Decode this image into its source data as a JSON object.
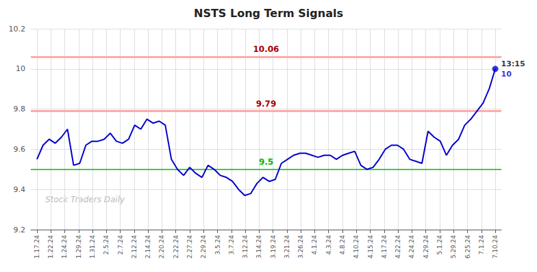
{
  "chart_data": {
    "type": "line",
    "title": "NSTS Long Term Signals",
    "watermark": "Stock Traders Daily",
    "color": "#0000cc",
    "x": [
      0,
      1,
      2,
      3,
      4,
      5,
      6,
      7,
      8,
      9,
      10,
      11,
      12,
      13,
      14,
      15,
      16,
      17,
      18,
      19,
      20,
      21,
      22,
      23,
      24,
      25,
      26,
      27,
      28,
      29,
      30,
      31,
      32,
      33,
      34,
      35,
      36,
      37,
      38,
      39,
      40,
      41,
      42,
      43,
      44,
      45,
      46,
      47,
      48,
      49,
      50,
      51,
      52,
      53,
      54,
      55,
      56,
      57,
      58,
      59,
      60,
      61,
      62,
      63,
      64,
      65,
      66,
      67,
      68,
      69,
      70,
      71,
      72,
      73,
      74,
      75
    ],
    "values": [
      9.55,
      9.62,
      9.65,
      9.63,
      9.66,
      9.7,
      9.52,
      9.53,
      9.62,
      9.64,
      9.64,
      9.65,
      9.68,
      9.64,
      9.63,
      9.65,
      9.72,
      9.7,
      9.75,
      9.73,
      9.74,
      9.72,
      9.55,
      9.5,
      9.47,
      9.51,
      9.48,
      9.46,
      9.52,
      9.5,
      9.47,
      9.46,
      9.44,
      9.4,
      9.37,
      9.38,
      9.43,
      9.46,
      9.44,
      9.45,
      9.53,
      9.55,
      9.57,
      9.58,
      9.58,
      9.57,
      9.56,
      9.57,
      9.57,
      9.55,
      9.57,
      9.58,
      9.59,
      9.52,
      9.5,
      9.51,
      9.55,
      9.6,
      9.62,
      9.62,
      9.6,
      9.55,
      9.54,
      9.53,
      9.69,
      9.66,
      9.64,
      9.57,
      9.62,
      9.65,
      9.72,
      9.75,
      9.79,
      9.83,
      9.9,
      10.0
    ],
    "xlim": [
      -1,
      76
    ],
    "xticks": [
      {
        "value": 0,
        "label": "1.17.24"
      },
      {
        "value": 2.2727272727,
        "label": "1.22.24"
      },
      {
        "value": 4.5454545455,
        "label": "1.24.24"
      },
      {
        "value": 6.8181818182,
        "label": "1.29.24"
      },
      {
        "value": 9.0909090909,
        "label": "1.31.24"
      },
      {
        "value": 11.3636363636,
        "label": "2.5.24"
      },
      {
        "value": 13.6363636364,
        "label": "2.7.24"
      },
      {
        "value": 15.9090909091,
        "label": "2.12.24"
      },
      {
        "value": 18.1818181818,
        "label": "2.14.24"
      },
      {
        "value": 20.4545454545,
        "label": "2.20.24"
      },
      {
        "value": 22.7272727273,
        "label": "2.22.24"
      },
      {
        "value": 25,
        "label": "2.27.24"
      },
      {
        "value": 27.2727272727,
        "label": "2.29.24"
      },
      {
        "value": 29.5454545455,
        "label": "3.5.24"
      },
      {
        "value": 31.8181818182,
        "label": "3.7.24"
      },
      {
        "value": 34.0909090909,
        "label": "3.12.24"
      },
      {
        "value": 36.3636363636,
        "label": "3.14.24"
      },
      {
        "value": 38.6363636364,
        "label": "3.19.24"
      },
      {
        "value": 40.9090909091,
        "label": "3.21.24"
      },
      {
        "value": 43.1818181818,
        "label": "3.26.24"
      },
      {
        "value": 45.4545454545,
        "label": "4.1.24"
      },
      {
        "value": 47.7272727273,
        "label": "4.3.24"
      },
      {
        "value": 50,
        "label": "4.8.24"
      },
      {
        "value": 52.2727272727,
        "label": "4.10.24"
      },
      {
        "value": 54.5454545455,
        "label": "4.15.24"
      },
      {
        "value": 56.8181818182,
        "label": "4.17.24"
      },
      {
        "value": 59.0909090909,
        "label": "4.22.24"
      },
      {
        "value": 61.3636363636,
        "label": "4.24.24"
      },
      {
        "value": 63.6363636364,
        "label": "4.29.24"
      },
      {
        "value": 65.9090909091,
        "label": "5.1.24"
      },
      {
        "value": 68.1818181818,
        "label": "5.29.24"
      },
      {
        "value": 70.4545454545,
        "label": "6.25.24"
      },
      {
        "value": 72.7272727273,
        "label": "7.1.24"
      },
      {
        "value": 75,
        "label": "7.10.24"
      }
    ],
    "ylim": [
      9.2,
      10.2
    ],
    "yticks": [
      9.2,
      9.4,
      9.6,
      9.8,
      10,
      10.2
    ],
    "grid": true,
    "hlines": [
      {
        "y": 9.5,
        "label": "9.5",
        "color": "#00bb00",
        "label_color": "#00bb00"
      },
      {
        "y": 9.79,
        "label": "9.79",
        "color": "#ffaaaa",
        "label_color": "#aa0000"
      },
      {
        "y": 10.06,
        "label": "10.06",
        "color": "#ffaaaa",
        "label_color": "#aa0000"
      }
    ],
    "last_point": {
      "x": 75,
      "y": 10.0,
      "time_label": "13:15",
      "value_label": "10",
      "color": "#0000cc"
    }
  }
}
